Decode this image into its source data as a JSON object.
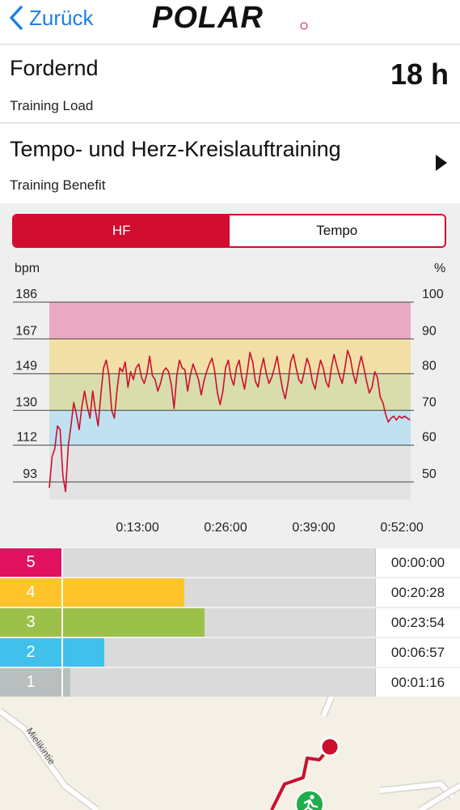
{
  "header": {
    "back_label": "Zurück",
    "brand": "POLAR"
  },
  "training_load": {
    "title": "Fordernd",
    "subtitle": "Training Load",
    "value": "18 h"
  },
  "training_benefit": {
    "title": "Tempo- und Herz-Kreislauftraining",
    "subtitle": "Training Benefit"
  },
  "segment": {
    "active": "HF",
    "inactive": "Tempo"
  },
  "chart_data": {
    "type": "line",
    "ylabel_left": "bpm",
    "ylabel_right": "%",
    "y_ticks_left": [
      "186",
      "167",
      "149",
      "130",
      "112",
      "93"
    ],
    "y_ticks_right": [
      "100",
      "90",
      "80",
      "70",
      "60",
      "50"
    ],
    "x_ticks": [
      "0:13:00",
      "0:26:00",
      "0:39:00",
      "0:52:00"
    ],
    "ylim": [
      84,
      186
    ],
    "xlim_minutes": [
      0,
      53.3
    ],
    "zones": [
      {
        "from": 167,
        "to": 186,
        "color": "#eaa9c3"
      },
      {
        "from": 149,
        "to": 167,
        "color": "#f1dfa6"
      },
      {
        "from": 130,
        "to": 149,
        "color": "#d9dcab"
      },
      {
        "from": 112,
        "to": 130,
        "color": "#bfe1f0"
      },
      {
        "from": 84,
        "to": 112,
        "color": "#e3e3e3"
      }
    ],
    "line_color": "#cc0e2f",
    "series": [
      {
        "x": [
          0,
          0.4,
          0.8,
          1.2,
          1.6,
          2.0,
          2.4,
          2.8,
          3.2,
          3.6,
          4.0,
          4.4,
          4.8,
          5.2,
          5.6,
          6.0,
          6.4,
          6.8,
          7.2,
          7.6,
          8.0,
          8.4,
          8.8,
          9.2,
          9.6,
          10.0,
          10.4,
          10.8,
          11.2,
          11.6,
          12.0,
          12.4,
          12.8,
          13.2,
          13.6,
          14.0,
          14.4,
          14.8,
          15.2,
          15.6,
          16.0,
          16.4,
          16.8,
          17.2,
          17.6,
          18.0,
          18.4,
          18.8,
          19.2,
          19.6,
          20.0,
          20.4,
          20.8,
          21.2,
          21.6,
          22.0,
          22.4,
          22.8,
          23.2,
          23.6,
          24.0,
          24.4,
          24.8,
          25.2,
          25.6,
          26.0,
          26.4,
          26.8,
          27.2,
          27.6,
          28.0,
          28.4,
          28.8,
          29.2,
          29.6,
          30.0,
          30.4,
          30.8,
          31.2,
          31.6,
          32.0,
          32.4,
          32.8,
          33.2,
          33.6,
          34.0,
          34.4,
          34.8,
          35.2,
          35.6,
          36.0,
          36.4,
          36.8,
          37.2,
          37.6,
          38.0,
          38.4,
          38.8,
          39.2,
          39.6,
          40.0,
          40.4,
          40.8,
          41.2,
          41.6,
          42.0,
          42.4,
          42.8,
          43.2,
          43.6,
          44.0,
          44.4,
          44.8,
          45.2,
          45.6,
          46.0,
          46.4,
          46.8,
          47.2,
          47.6,
          48.0,
          48.4,
          48.8,
          49.2,
          49.6,
          50.0,
          50.4,
          50.8,
          51.2,
          51.6,
          52.0,
          52.4,
          52.8,
          53.2
        ],
        "y": [
          90,
          106,
          110,
          122,
          120,
          96,
          88,
          112,
          122,
          134,
          128,
          120,
          132,
          140,
          132,
          126,
          140,
          130,
          122,
          138,
          152,
          156,
          148,
          130,
          126,
          141,
          152,
          150,
          155,
          142,
          150,
          146,
          152,
          154,
          147,
          144,
          149,
          158,
          148,
          146,
          140,
          144,
          150,
          152,
          150,
          143,
          131,
          148,
          156,
          152,
          151,
          140,
          148,
          154,
          150,
          146,
          138,
          145,
          150,
          154,
          157,
          150,
          139,
          133,
          140,
          152,
          156,
          147,
          143,
          152,
          156,
          147,
          141,
          150,
          160,
          155,
          145,
          142,
          151,
          157,
          149,
          144,
          147,
          152,
          158,
          149,
          141,
          136,
          144,
          155,
          159,
          152,
          146,
          144,
          150,
          157,
          153,
          145,
          141,
          149,
          156,
          152,
          145,
          142,
          152,
          159,
          153,
          148,
          144,
          152,
          161,
          157,
          149,
          144,
          152,
          158,
          152,
          145,
          139,
          142,
          150,
          147,
          137,
          134,
          128,
          124,
          126,
          127,
          125,
          127,
          126,
          127,
          126,
          125
        ]
      }
    ]
  },
  "zones_table": [
    {
      "zone": "5",
      "time": "00:00:00",
      "fraction": 0.0,
      "color": "#e0115f"
    },
    {
      "zone": "4",
      "time": "00:20:28",
      "fraction": 0.388,
      "color": "#fec42a"
    },
    {
      "zone": "3",
      "time": "00:23:54",
      "fraction": 0.453,
      "color": "#9bc14a"
    },
    {
      "zone": "2",
      "time": "00:06:57",
      "fraction": 0.132,
      "color": "#3fc1ec"
    },
    {
      "zone": "1",
      "time": "00:01:16",
      "fraction": 0.024,
      "color": "#b9bfbf"
    }
  ],
  "map": {
    "street_label": "Mielikintie"
  }
}
